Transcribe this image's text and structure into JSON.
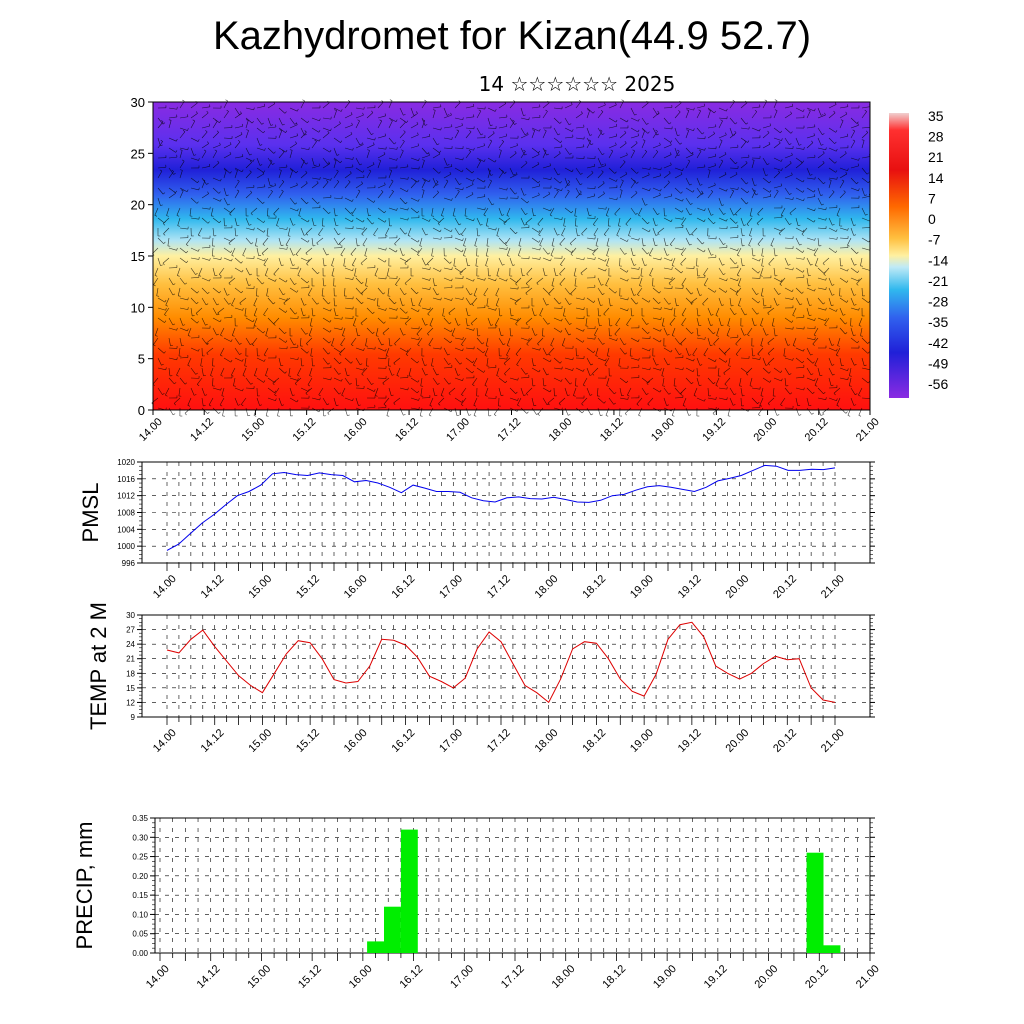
{
  "title": "Kazhydromet for Kizan(44.9 52.7)",
  "subtitle": "14 ☆☆☆☆☆☆ 2025",
  "chart_data": [
    {
      "type": "heatmap",
      "ylim": [
        0,
        30
      ],
      "yticks": [
        "0",
        "5",
        "10",
        "15",
        "20",
        "25",
        "30"
      ],
      "xticks": [
        "14.00",
        "14.12",
        "15.00",
        "15.12",
        "16.00",
        "16.12",
        "17.00",
        "17.12",
        "18.00",
        "18.12",
        "19.00",
        "19.12",
        "20.00",
        "20.12",
        "21.00"
      ],
      "colorbar_labels": [
        "35",
        "28",
        "21",
        "14",
        "7",
        "0",
        "-7",
        "-14",
        "-21",
        "-28",
        "-35",
        "-42",
        "-49",
        "-56"
      ],
      "colors": [
        "#f0f0f0",
        "#ff0000",
        "#ff7a00",
        "#ffe680",
        "#33bbee",
        "#2222dd",
        "#8a2be2"
      ],
      "overlay": "wind barbs"
    },
    {
      "type": "line",
      "ylabel": "PMSL",
      "ylim": [
        996,
        1020
      ],
      "yticks": [
        "996",
        "1000",
        "1004",
        "1008",
        "1012",
        "1016",
        "1020"
      ],
      "xticks": [
        "14.00",
        "14.12",
        "15.00",
        "15.12",
        "16.00",
        "16.12",
        "17.00",
        "17.12",
        "18.00",
        "18.12",
        "19.00",
        "19.12",
        "20.00",
        "20.12",
        "21.00"
      ],
      "color": "#0000ee",
      "values": [
        999.0,
        1000.5,
        1003.0,
        1005.5,
        1007.5,
        1009.8,
        1012.0,
        1013.0,
        1014.5,
        1017.2,
        1017.5,
        1017.0,
        1016.8,
        1017.4,
        1017.0,
        1016.8,
        1015.3,
        1015.6,
        1015.0,
        1014.0,
        1012.7,
        1014.5,
        1013.8,
        1013.0,
        1013.0,
        1012.8,
        1011.5,
        1010.8,
        1010.5,
        1011.5,
        1011.7,
        1011.3,
        1011.2,
        1011.6,
        1011.1,
        1010.5,
        1010.4,
        1010.9,
        1012.0,
        1012.3,
        1013.3,
        1014.1,
        1014.4,
        1014.0,
        1013.5,
        1013.0,
        1014.0,
        1015.5,
        1016.1,
        1016.8,
        1018.0,
        1019.2,
        1019.0,
        1018.0,
        1018.0,
        1018.3,
        1018.2,
        1018.6
      ]
    },
    {
      "type": "line",
      "ylabel": "TEMP at 2 M",
      "ylim": [
        9,
        30
      ],
      "yticks": [
        "9",
        "12",
        "15",
        "18",
        "21",
        "24",
        "27",
        "30"
      ],
      "xticks": [
        "14.00",
        "14.12",
        "15.00",
        "15.12",
        "16.00",
        "16.12",
        "17.00",
        "17.12",
        "18.00",
        "18.12",
        "19.00",
        "19.12",
        "20.00",
        "20.12",
        "21.00"
      ],
      "color": "#dd0000",
      "values": [
        22.8,
        22.2,
        25.0,
        26.9,
        23.5,
        20.5,
        17.5,
        15.5,
        14.0,
        18.0,
        22.0,
        24.7,
        24.3,
        21.0,
        16.7,
        16.0,
        16.3,
        19.5,
        25.0,
        24.8,
        23.8,
        21.3,
        17.4,
        16.3,
        15.0,
        17.0,
        23.0,
        26.5,
        24.5,
        20.0,
        15.5,
        14.0,
        12.0,
        16.8,
        23.0,
        24.5,
        24.2,
        21.0,
        16.8,
        14.3,
        13.3,
        17.8,
        25.0,
        28.0,
        28.5,
        25.5,
        19.5,
        18.0,
        16.8,
        18.0,
        20.0,
        21.5,
        20.8,
        21.0,
        15.0,
        12.5,
        12.0
      ]
    },
    {
      "type": "bar",
      "ylabel": "PRECIP, mm",
      "ylim": [
        0,
        0.35
      ],
      "yticks": [
        "0.00",
        "0.05",
        "0.10",
        "0.15",
        "0.20",
        "0.25",
        "0.30",
        "0.35"
      ],
      "xticks": [
        "14.00",
        "14.12",
        "15.00",
        "15.12",
        "16.00",
        "16.12",
        "17.00",
        "17.12",
        "18.00",
        "18.12",
        "19.00",
        "19.12",
        "20.00",
        "20.12",
        "21.00"
      ],
      "color": "#00ee00",
      "bars": [
        {
          "t": 25.5,
          "value": 0.03
        },
        {
          "t": 27.5,
          "value": 0.12
        },
        {
          "t": 29.5,
          "value": 0.32
        },
        {
          "t": 77.5,
          "value": 0.26
        },
        {
          "t": 79.5,
          "value": 0.02
        }
      ]
    }
  ]
}
